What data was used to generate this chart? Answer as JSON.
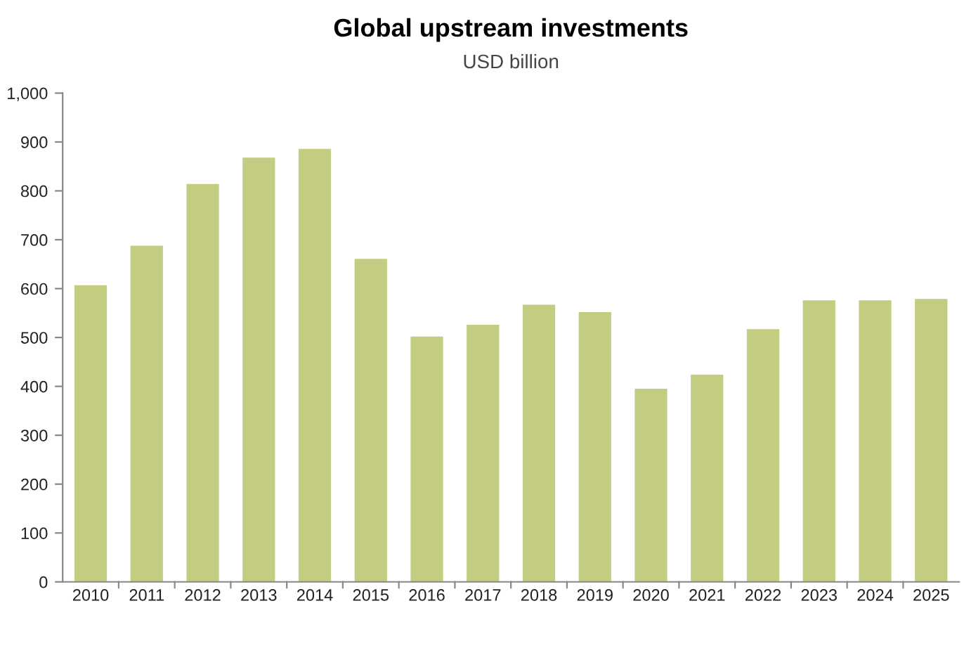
{
  "chart_data": {
    "type": "bar",
    "title": "Global upstream investments",
    "subtitle": "USD billion",
    "categories": [
      "2010",
      "2011",
      "2012",
      "2013",
      "2014",
      "2015",
      "2016",
      "2017",
      "2018",
      "2019",
      "2020",
      "2021",
      "2022",
      "2023",
      "2024",
      "2025"
    ],
    "values": [
      607,
      688,
      814,
      868,
      886,
      661,
      502,
      526,
      567,
      552,
      395,
      424,
      517,
      576,
      576,
      579
    ],
    "color": "#c3cc80",
    "ylim": [
      0,
      1000
    ],
    "yticks": [
      0,
      100,
      200,
      300,
      400,
      500,
      600,
      700,
      800,
      900,
      {
        "value": 1000,
        "label": "1,000"
      }
    ],
    "grid": false
  }
}
